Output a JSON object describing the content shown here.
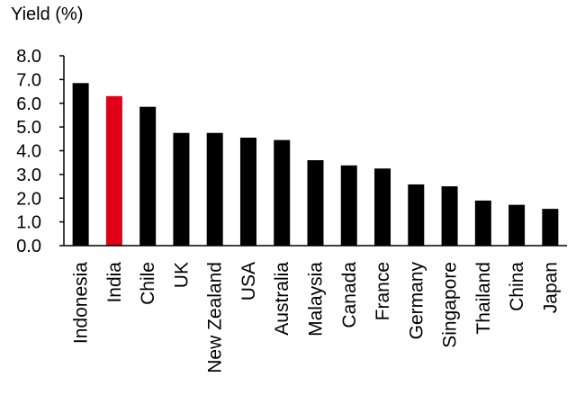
{
  "chart_data": {
    "type": "bar",
    "ylabel": "Yield (%)",
    "xlabel": "",
    "ylim": [
      0,
      8
    ],
    "yticks": [
      "0.0",
      "1.0",
      "2.0",
      "3.0",
      "4.0",
      "5.0",
      "6.0",
      "7.0",
      "8.0"
    ],
    "categories": [
      "Indonesia",
      "India",
      "Chile",
      "UK",
      "New Zealand",
      "USA",
      "Australia",
      "Malaysia",
      "Canada",
      "France",
      "Germany",
      "Singapore",
      "Thailand",
      "China",
      "Japan"
    ],
    "values": [
      6.85,
      6.3,
      5.85,
      4.75,
      4.75,
      4.55,
      4.45,
      3.6,
      3.38,
      3.25,
      2.58,
      2.5,
      1.9,
      1.72,
      1.55
    ],
    "highlight_category": "India",
    "grid": false,
    "colors": {
      "bar": "#000000",
      "highlight": "#e00018",
      "axis": "#000000"
    }
  }
}
